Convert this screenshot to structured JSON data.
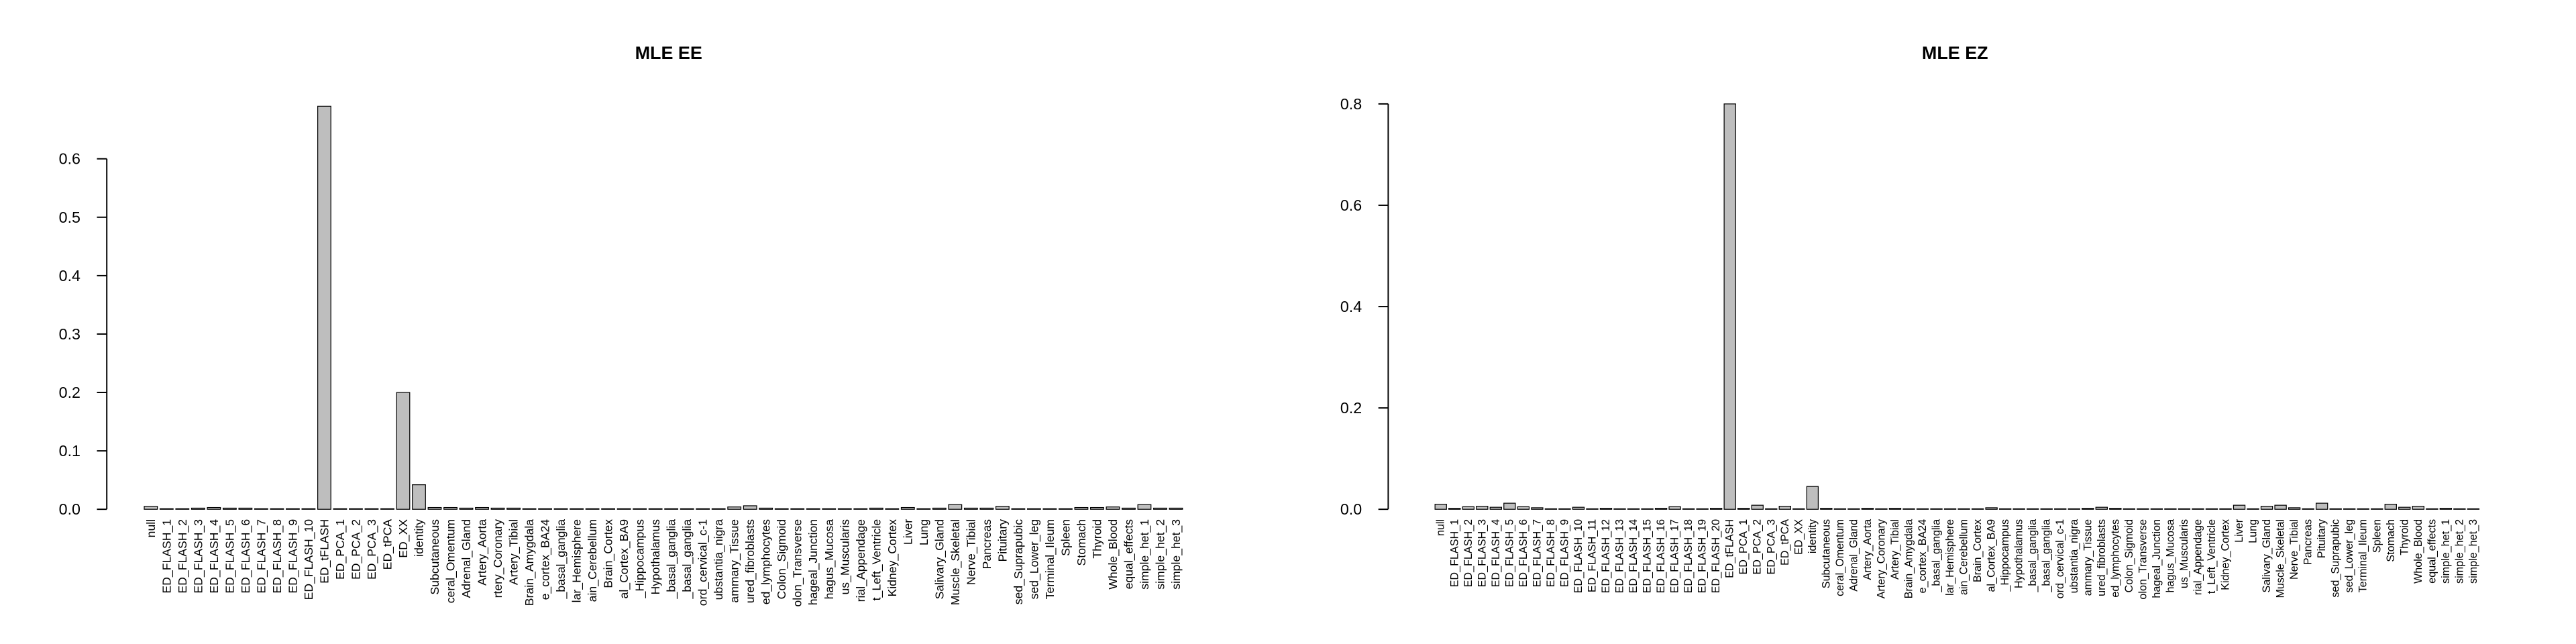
{
  "chart_data": [
    {
      "type": "bar",
      "title": "MLE EE",
      "color": "#bebebe",
      "categories": [
        "null",
        "ED_FLASH_1",
        "ED_FLASH_2",
        "ED_FLASH_3",
        "ED_FLASH_4",
        "ED_FLASH_5",
        "ED_FLASH_6",
        "ED_FLASH_7",
        "ED_FLASH_8",
        "ED_FLASH_9",
        "ED_FLASH_10",
        "ED_tFLASH",
        "ED_PCA_1",
        "ED_PCA_2",
        "ED_PCA_3",
        "ED_tPCA",
        "ED_XX",
        "identity",
        "Subcutaneous",
        "ceral_Omentum",
        "Adrenal_Gland",
        "Artery_Aorta",
        "rtery_Coronary",
        "Artery_Tibial",
        "Brain_Amygdala",
        "e_cortex_BA24",
        "_basal_ganglia",
        "lar_Hemisphere",
        "ain_Cerebellum",
        "Brain_Cortex",
        "al_Cortex_BA9",
        "_Hippocampus",
        "Hypothalamus",
        "_basal_ganglia",
        "_basal_ganglia",
        "ord_cervical_c-1",
        "ubstantia_nigra",
        "ammary_Tissue",
        "ured_fibroblasts",
        "ed_lymphocytes",
        "Colon_Sigmoid",
        "olon_Transverse",
        "hageal_Junction",
        "hagus_Mucosa",
        "us_Muscularis",
        "rial_Appendage",
        "t_Left_Ventricle",
        "Kidney_Cortex",
        "Liver",
        "Lung",
        "Salivary_Gland",
        "Muscle_Skeletal",
        "Nerve_Tibial",
        "Pancreas",
        "Pituitary",
        "sed_Suprapubic",
        "sed_Lower_leg",
        "Terminal_Ileum",
        "Spleen",
        "Stomach",
        "Thyroid",
        "Whole_Blood",
        "equal_effects",
        "simple_het_1",
        "simple_het_2",
        "simple_het_3"
      ],
      "values": [
        0.005,
        0.001,
        0.001,
        0.002,
        0.003,
        0.002,
        0.002,
        0.001,
        0.001,
        0.001,
        0.001,
        0.69,
        0.001,
        0.001,
        0.001,
        0.001,
        0.2,
        0.042,
        0.003,
        0.003,
        0.002,
        0.003,
        0.002,
        0.002,
        0.001,
        0.001,
        0.001,
        0.001,
        0.001,
        0.001,
        0.001,
        0.001,
        0.001,
        0.001,
        0.001,
        0.001,
        0.001,
        0.004,
        0.006,
        0.002,
        0.001,
        0.001,
        0.001,
        0.001,
        0.001,
        0.001,
        0.002,
        0.001,
        0.003,
        0.001,
        0.002,
        0.008,
        0.002,
        0.002,
        0.005,
        0.001,
        0.001,
        0.001,
        0.001,
        0.003,
        0.003,
        0.004,
        0.002,
        0.008,
        0.002,
        0.002
      ],
      "ylim": [
        0,
        0.72
      ],
      "yticks": [
        {
          "value": 0,
          "label": "0.0"
        },
        0.1,
        0.2,
        0.3,
        0.4,
        0.5,
        0.6
      ]
    },
    {
      "type": "bar",
      "title": "MLE EZ",
      "color": "#bebebe",
      "categories": [
        "null",
        "ED_FLASH_1",
        "ED_FLASH_2",
        "ED_FLASH_3",
        "ED_FLASH_4",
        "ED_FLASH_5",
        "ED_FLASH_6",
        "ED_FLASH_7",
        "ED_FLASH_8",
        "ED_FLASH_9",
        "ED_FLASH_10",
        "ED_FLASH_11",
        "ED_FLASH_12",
        "ED_FLASH_13",
        "ED_FLASH_14",
        "ED_FLASH_15",
        "ED_FLASH_16",
        "ED_FLASH_17",
        "ED_FLASH_18",
        "ED_FLASH_19",
        "ED_FLASH_20",
        "ED_tFLASH",
        "ED_PCA_1",
        "ED_PCA_2",
        "ED_PCA_3",
        "ED_tPCA",
        "ED_XX",
        "identity",
        "Subcutaneous",
        "ceral_Omentum",
        "Adrenal_Gland",
        "Artery_Aorta",
        "Artery_Coronary",
        "Artery_Tibial",
        "Brain_Amygdala",
        "e_cortex_BA24",
        "_basal_ganglia",
        "lar_Hemisphere",
        "ain_Cerebellum",
        "Brain_Cortex",
        "al_Cortex_BA9",
        "_Hippocampus",
        "Hypothalamus",
        "_basal_ganglia",
        "_basal_ganglia",
        "ord_cervical_c-1",
        "ubstantia_nigra",
        "ammary_Tissue",
        "ured_fibroblasts",
        "ed_lymphocytes",
        "Colon_Sigmoid",
        "olon_Transverse",
        "hageal_Junction",
        "hagus_Mucosa",
        "us_Muscularis",
        "rial_Appendage",
        "t_Left_Ventricle",
        "Kidney_Cortex",
        "Liver",
        "Lung",
        "Salivary_Gland",
        "Muscle_Skeletal",
        "Nerve_Tibial",
        "Pancreas",
        "Pituitary",
        "sed_Suprapubic",
        "sed_Lower_leg",
        "Terminal_Ileum",
        "Spleen",
        "Stomach",
        "Thyroid",
        "Whole_Blood",
        "equal_effects",
        "simple_het_1",
        "simple_het_2",
        "simple_het_3"
      ],
      "values": [
        0.01,
        0.002,
        0.005,
        0.006,
        0.004,
        0.012,
        0.005,
        0.003,
        0.001,
        0.001,
        0.004,
        0.001,
        0.002,
        0.001,
        0.001,
        0.001,
        0.002,
        0.005,
        0.001,
        0.001,
        0.002,
        0.8,
        0.002,
        0.008,
        0.001,
        0.006,
        0.001,
        0.045,
        0.002,
        0.001,
        0.001,
        0.002,
        0.001,
        0.002,
        0.001,
        0.001,
        0.001,
        0.001,
        0.001,
        0.001,
        0.003,
        0.001,
        0.001,
        0.001,
        0.001,
        0.001,
        0.001,
        0.002,
        0.004,
        0.002,
        0.001,
        0.001,
        0.001,
        0.001,
        0.001,
        0.001,
        0.001,
        0.001,
        0.008,
        0.001,
        0.006,
        0.008,
        0.003,
        0.001,
        0.012,
        0.001,
        0.001,
        0.001,
        0.001,
        0.01,
        0.004,
        0.006,
        0.001,
        0.002,
        0.001,
        0.001
      ],
      "ylim": [
        0,
        0.83
      ],
      "yticks": [
        {
          "value": 0,
          "label": "0.0"
        },
        0.2,
        0.4,
        0.6,
        0.8
      ]
    }
  ]
}
